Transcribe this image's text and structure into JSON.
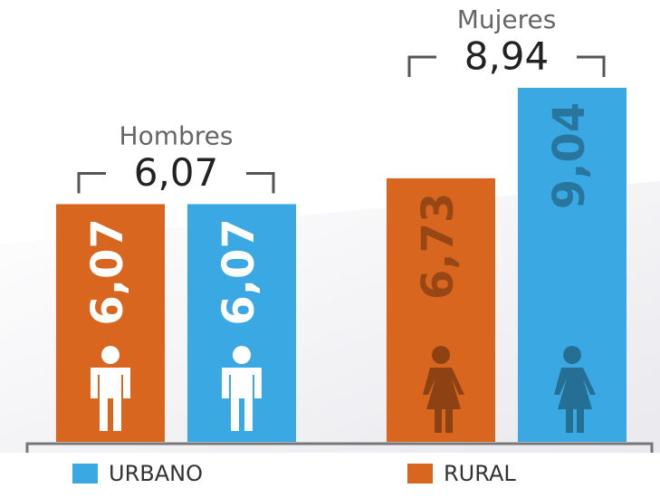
{
  "chart_data": {
    "type": "bar",
    "categories": [
      "Hombres",
      "Mujeres"
    ],
    "totals": {
      "values": [
        6.07,
        8.94
      ],
      "value_labels": [
        "6,07",
        "8,94"
      ]
    },
    "series": [
      {
        "name": "RURAL",
        "color": "#d9661f",
        "values": [
          6.07,
          6.73
        ],
        "value_labels": [
          "6,07",
          "6,73"
        ]
      },
      {
        "name": "URBANO",
        "color": "#3aa9e3",
        "values": [
          6.07,
          9.04
        ],
        "value_labels": [
          "6,07",
          "9,04"
        ]
      }
    ]
  }
}
